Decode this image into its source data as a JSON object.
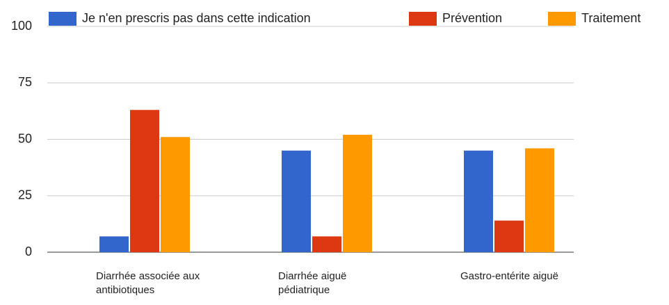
{
  "chart_data": {
    "type": "bar",
    "categories": [
      "Diarrhée associée aux antibiotiques",
      "Diarrhée aiguë pédiatrique",
      "Gastro-entérite aiguë"
    ],
    "series": [
      {
        "name": "Je n'en prescris pas dans cette indication",
        "color": "#3366cc",
        "values": [
          7,
          45,
          45
        ]
      },
      {
        "name": "Prévention",
        "color": "#dc3912",
        "values": [
          63,
          7,
          14
        ]
      },
      {
        "name": "Traitement",
        "color": "#ff9900",
        "values": [
          51,
          52,
          46
        ]
      }
    ],
    "ylim": [
      0,
      100
    ],
    "yticks": [
      0,
      25,
      50,
      75,
      100
    ],
    "grid": true,
    "legend": "top"
  }
}
